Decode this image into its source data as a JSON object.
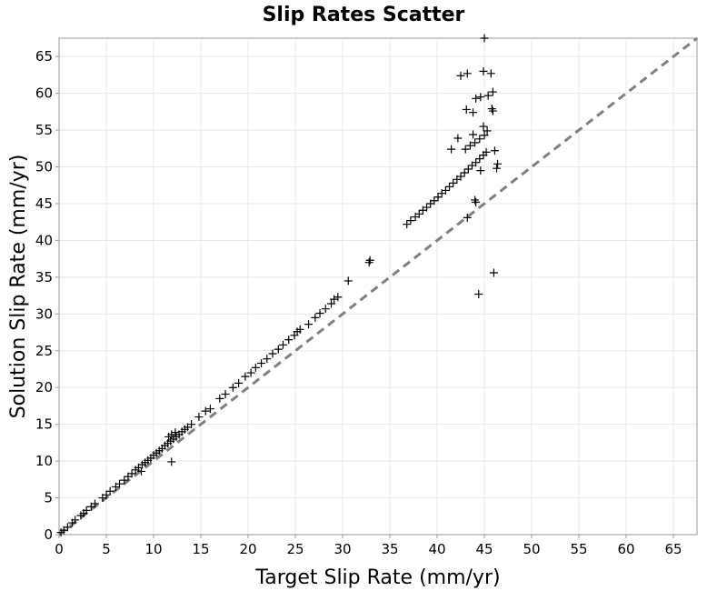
{
  "chart_data": {
    "type": "scatter",
    "title": "Slip Rates Scatter",
    "xlabel": "Target Slip Rate (mm/yr)",
    "ylabel": "Solution Slip Rate (mm/yr)",
    "xlim": [
      0,
      67.5
    ],
    "ylim": [
      0,
      67.5
    ],
    "xticks": [
      "0",
      "5",
      "10",
      "15",
      "20",
      "25",
      "30",
      "35",
      "40",
      "45",
      "50",
      "55",
      "60",
      "65"
    ],
    "yticks": [
      "0",
      "5",
      "10",
      "15",
      "20",
      "25",
      "30",
      "35",
      "40",
      "45",
      "50",
      "55",
      "60",
      "65"
    ],
    "grid": true,
    "reference_line": "y = x",
    "marker": "plus",
    "marker_color": "#000000",
    "reference_line_color": "#808080",
    "points": [
      [
        0.2,
        0.3
      ],
      [
        0.5,
        0.6
      ],
      [
        0.9,
        1.0
      ],
      [
        1.4,
        1.6
      ],
      [
        1.7,
        2.0
      ],
      [
        2.3,
        2.6
      ],
      [
        2.6,
        2.9
      ],
      [
        2.9,
        3.3
      ],
      [
        3.4,
        3.8
      ],
      [
        3.8,
        4.2
      ],
      [
        4.6,
        5.0
      ],
      [
        5.0,
        5.4
      ],
      [
        5.4,
        5.9
      ],
      [
        6.0,
        6.5
      ],
      [
        6.4,
        6.9
      ],
      [
        6.9,
        7.4
      ],
      [
        7.3,
        7.9
      ],
      [
        7.7,
        8.3
      ],
      [
        8.1,
        8.8
      ],
      [
        8.4,
        9.1
      ],
      [
        8.8,
        9.5
      ],
      [
        9.1,
        9.8
      ],
      [
        9.4,
        10.1
      ],
      [
        9.7,
        10.4
      ],
      [
        10.0,
        10.8
      ],
      [
        10.3,
        11.1
      ],
      [
        10.6,
        11.4
      ],
      [
        10.9,
        11.7
      ],
      [
        11.2,
        12.1
      ],
      [
        11.5,
        12.4
      ],
      [
        11.8,
        12.7
      ],
      [
        12.1,
        13.0
      ],
      [
        12.4,
        13.3
      ],
      [
        12.7,
        13.6
      ],
      [
        13.0,
        14.0
      ],
      [
        13.3,
        14.3
      ],
      [
        13.6,
        14.6
      ],
      [
        14.0,
        15.0
      ],
      [
        11.6,
        13.3
      ],
      [
        11.9,
        13.6
      ],
      [
        12.3,
        13.9
      ],
      [
        8.7,
        8.6
      ],
      [
        11.9,
        9.9
      ],
      [
        14.8,
        16.0
      ],
      [
        15.5,
        16.8
      ],
      [
        16.0,
        17.1
      ],
      [
        17.0,
        18.5
      ],
      [
        17.6,
        19.1
      ],
      [
        18.4,
        20.0
      ],
      [
        19.0,
        20.6
      ],
      [
        19.7,
        21.5
      ],
      [
        20.3,
        22.0
      ],
      [
        20.8,
        22.7
      ],
      [
        21.4,
        23.3
      ],
      [
        22.0,
        23.9
      ],
      [
        22.6,
        24.6
      ],
      [
        23.2,
        25.2
      ],
      [
        23.7,
        25.8
      ],
      [
        24.3,
        26.5
      ],
      [
        24.9,
        27.1
      ],
      [
        25.2,
        27.6
      ],
      [
        25.5,
        27.9
      ],
      [
        26.4,
        28.6
      ],
      [
        27.1,
        29.5
      ],
      [
        27.6,
        30.1
      ],
      [
        28.2,
        30.7
      ],
      [
        28.8,
        31.4
      ],
      [
        29.1,
        32.0
      ],
      [
        29.5,
        32.3
      ],
      [
        30.6,
        34.5
      ],
      [
        32.9,
        37.3
      ],
      [
        32.8,
        37.0
      ],
      [
        36.8,
        42.2
      ],
      [
        37.2,
        42.7
      ],
      [
        37.7,
        43.2
      ],
      [
        38.1,
        43.6
      ],
      [
        38.5,
        44.1
      ],
      [
        38.9,
        44.5
      ],
      [
        39.3,
        45.0
      ],
      [
        39.7,
        45.4
      ],
      [
        40.1,
        45.9
      ],
      [
        40.5,
        46.4
      ],
      [
        40.9,
        46.8
      ],
      [
        41.3,
        47.3
      ],
      [
        41.7,
        47.8
      ],
      [
        42.1,
        48.3
      ],
      [
        42.5,
        48.7
      ],
      [
        42.9,
        49.2
      ],
      [
        43.3,
        49.7
      ],
      [
        43.7,
        50.2
      ],
      [
        44.1,
        50.6
      ],
      [
        44.5,
        51.1
      ],
      [
        44.9,
        51.6
      ],
      [
        45.2,
        52.0
      ],
      [
        43.0,
        52.4
      ],
      [
        43.5,
        52.9
      ],
      [
        44.0,
        53.3
      ],
      [
        44.5,
        53.8
      ],
      [
        45.0,
        54.3
      ],
      [
        45.3,
        54.9
      ],
      [
        41.5,
        52.4
      ],
      [
        42.2,
        53.9
      ],
      [
        43.8,
        54.4
      ],
      [
        44.9,
        55.5
      ],
      [
        44.6,
        49.5
      ],
      [
        46.1,
        52.2
      ],
      [
        46.3,
        49.8
      ],
      [
        46.4,
        50.4
      ],
      [
        44.1,
        45.2
      ],
      [
        44.0,
        45.5
      ],
      [
        43.2,
        43.1
      ],
      [
        46.0,
        35.6
      ],
      [
        44.4,
        32.7
      ],
      [
        43.1,
        57.8
      ],
      [
        43.8,
        57.4
      ],
      [
        44.1,
        59.3
      ],
      [
        44.6,
        59.5
      ],
      [
        45.4,
        59.7
      ],
      [
        45.9,
        60.2
      ],
      [
        45.8,
        57.9
      ],
      [
        45.9,
        57.6
      ],
      [
        42.5,
        62.4
      ],
      [
        43.2,
        62.7
      ],
      [
        44.9,
        63.0
      ],
      [
        45.7,
        62.7
      ],
      [
        45.0,
        67.5
      ]
    ]
  }
}
